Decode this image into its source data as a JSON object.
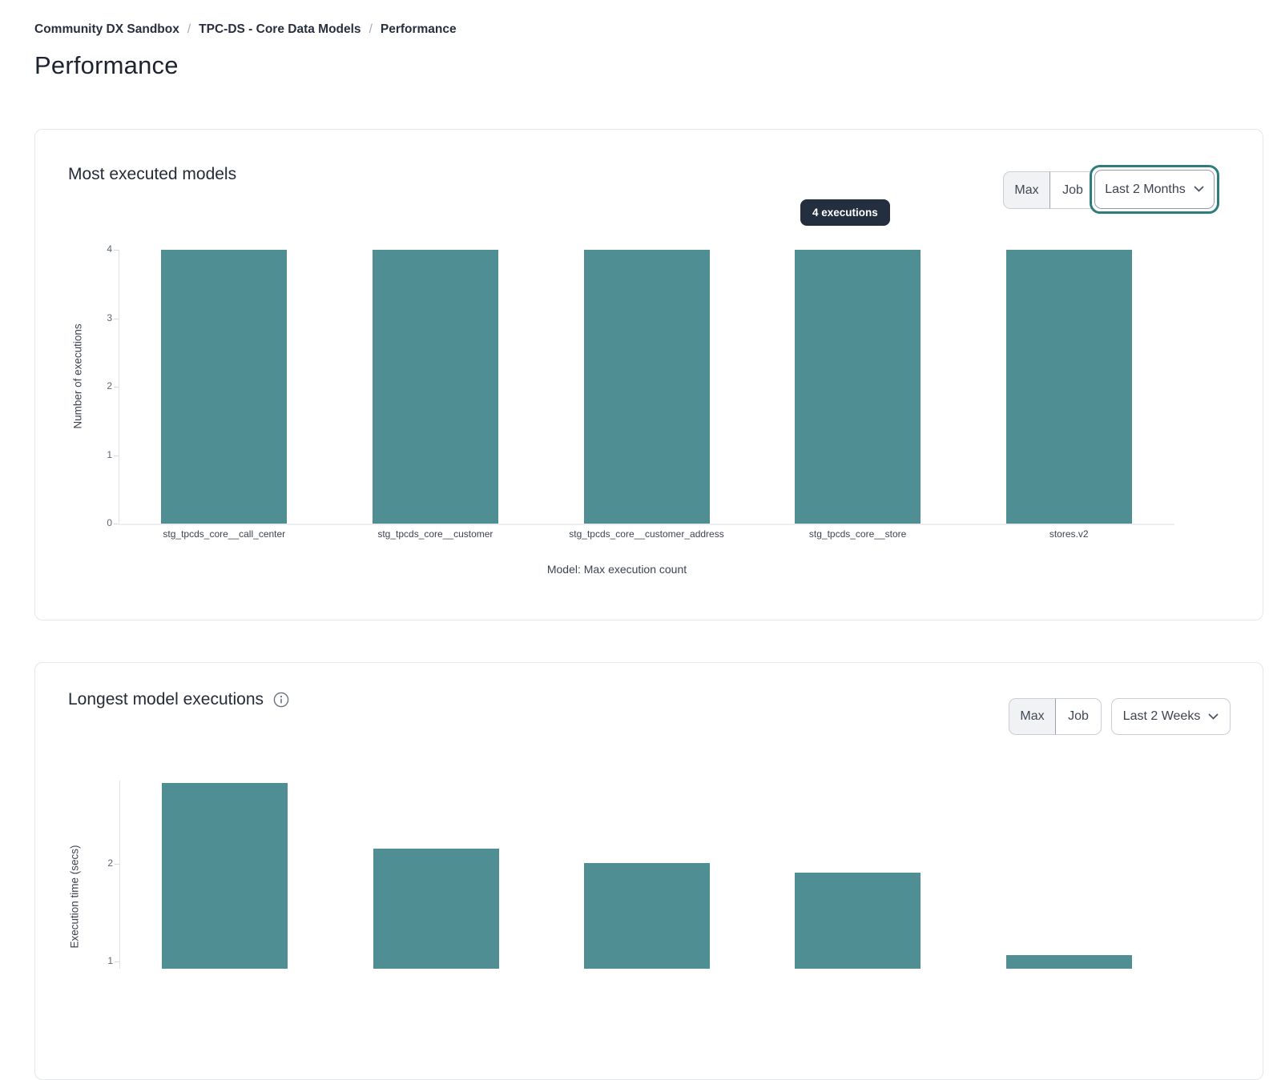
{
  "breadcrumb": {
    "separator": "/",
    "items": [
      {
        "label": "Community DX Sandbox"
      },
      {
        "label": "TPC-DS - Core Data Models"
      },
      {
        "label": "Performance"
      }
    ]
  },
  "page": {
    "title": "Performance"
  },
  "colors": {
    "bar": "#4f8e93",
    "focus_ring": "#2e7d7d",
    "tooltip_bg": "#232e3e",
    "card_border": "#e4e7eb"
  },
  "cards": [
    {
      "title": "Most executed models",
      "toggle": {
        "options": [
          "Max",
          "Job"
        ],
        "selected": "Max"
      },
      "dropdown": {
        "value": "Last 2 Months",
        "focused": true,
        "icon": "chevron-down"
      },
      "tooltip": "4 executions"
    },
    {
      "title": "Longest model executions",
      "info_icon": "info-circle",
      "toggle": {
        "options": [
          "Max",
          "Job"
        ],
        "selected": "Max"
      },
      "dropdown": {
        "value": "Last 2 Weeks",
        "focused": false,
        "icon": "chevron-down"
      }
    }
  ],
  "chart_data": [
    {
      "type": "bar",
      "title": "Most executed models",
      "categories": [
        "stg_tpcds_core__call_center",
        "stg_tpcds_core__customer",
        "stg_tpcds_core__customer_address",
        "stg_tpcds_core__store",
        "stores.v2"
      ],
      "values": [
        4,
        4,
        4,
        4,
        4
      ],
      "xlabel": "Model: Max execution count",
      "ylabel": "Number of executions",
      "ylim": [
        0,
        4
      ],
      "yticks": [
        0,
        1,
        2,
        3,
        4
      ],
      "grid": false,
      "annotation": "4 executions",
      "bar_color": "#4f8e93"
    },
    {
      "type": "bar",
      "title": "Longest model executions",
      "categories": [
        "",
        "",
        "",
        "",
        ""
      ],
      "values": [
        2.83,
        2.16,
        2.01,
        1.91,
        1.07
      ],
      "xlabel": "",
      "ylabel": "Execution time (secs)",
      "ylim": [
        0,
        2.9
      ],
      "yticks": [
        1,
        2
      ],
      "grid": false,
      "bar_color": "#4f8e93",
      "layout_note": "bottom of chart clipped by viewport"
    }
  ]
}
